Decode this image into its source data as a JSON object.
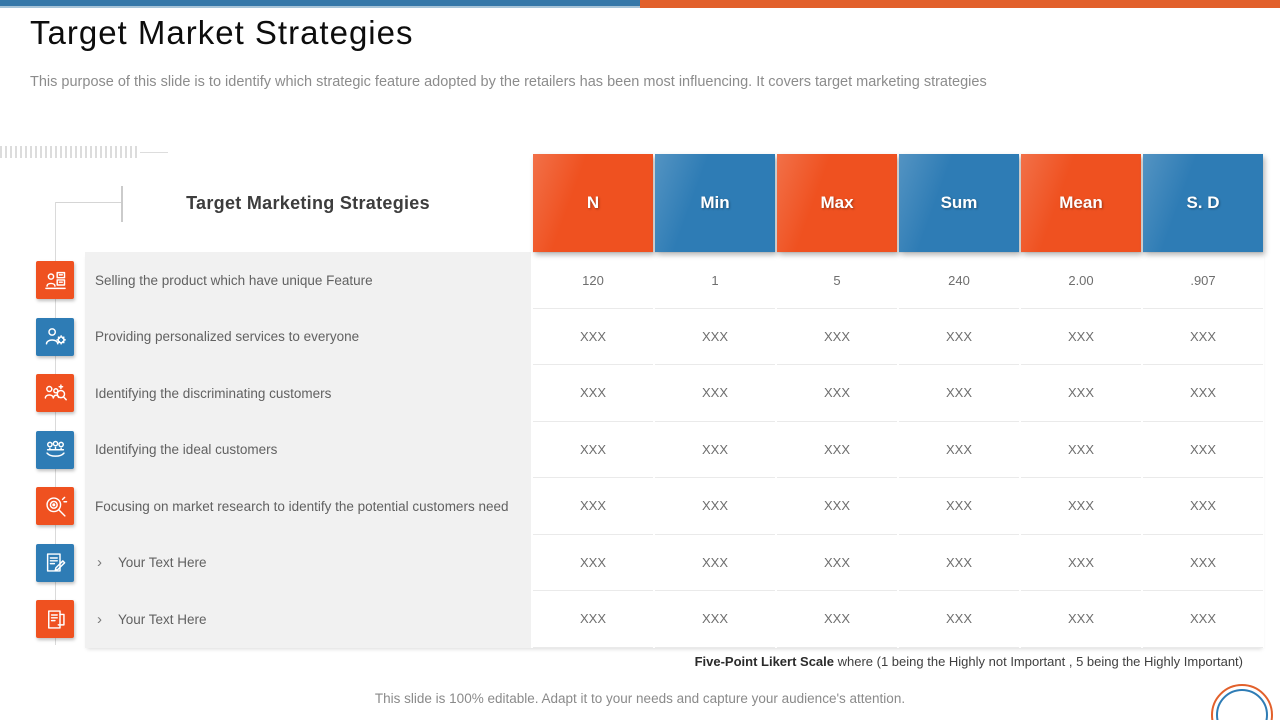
{
  "slide": {
    "title": "Target Market Strategies",
    "subtitle": "This purpose of this slide is to identify which strategic feature adopted by the retailers has been most influencing. It covers target marketing strategies",
    "footnote_bold": "Five-Point Likert Scale",
    "footnote_rest": " where (1 being the Highly not Important , 5 being the Highly Important)",
    "footer": "This slide is 100% editable. Adapt it to your needs and capture your audience's attention."
  },
  "colors": {
    "orange": "#EF5120",
    "blue": "#2E7CB5",
    "bar_blue": "#3678A9",
    "bar_orange": "#E2602B"
  },
  "table": {
    "label_header": "Target Marketing Strategies",
    "columns": [
      {
        "label": "N",
        "color": "orange"
      },
      {
        "label": "Min",
        "color": "blue"
      },
      {
        "label": "Max",
        "color": "orange"
      },
      {
        "label": "Sum",
        "color": "blue"
      },
      {
        "label": "Mean",
        "color": "orange"
      },
      {
        "label": "S. D",
        "color": "blue"
      }
    ],
    "rows": [
      {
        "icon": "selling-product-icon",
        "icon_color": "orange",
        "bullet": false,
        "label": "Selling the product which have unique Feature",
        "values": [
          "120",
          "1",
          "5",
          "240",
          "2.00",
          ".907"
        ]
      },
      {
        "icon": "personalized-services-icon",
        "icon_color": "blue",
        "bullet": false,
        "label": "Providing personalized services to everyone",
        "values": [
          "XXX",
          "XXX",
          "XXX",
          "XXX",
          "XXX",
          "XXX"
        ]
      },
      {
        "icon": "discriminating-customers-icon",
        "icon_color": "orange",
        "bullet": false,
        "label": "Identifying the discriminating customers",
        "values": [
          "XXX",
          "XXX",
          "XXX",
          "XXX",
          "XXX",
          "XXX"
        ]
      },
      {
        "icon": "ideal-customers-icon",
        "icon_color": "blue",
        "bullet": false,
        "label": "Identifying the ideal customers",
        "values": [
          "XXX",
          "XXX",
          "XXX",
          "XXX",
          "XXX",
          "XXX"
        ]
      },
      {
        "icon": "market-research-icon",
        "icon_color": "orange",
        "bullet": false,
        "label": "Focusing on market research to identify the potential customers need",
        "values": [
          "XXX",
          "XXX",
          "XXX",
          "XXX",
          "XXX",
          "XXX"
        ]
      },
      {
        "icon": "edit-document-icon",
        "icon_color": "blue",
        "bullet": true,
        "label": "Your Text Here",
        "values": [
          "XXX",
          "XXX",
          "XXX",
          "XXX",
          "XXX",
          "XXX"
        ]
      },
      {
        "icon": "document-icon",
        "icon_color": "orange",
        "bullet": true,
        "label": "Your Text Here",
        "values": [
          "XXX",
          "XXX",
          "XXX",
          "XXX",
          "XXX",
          "XXX"
        ]
      }
    ]
  }
}
